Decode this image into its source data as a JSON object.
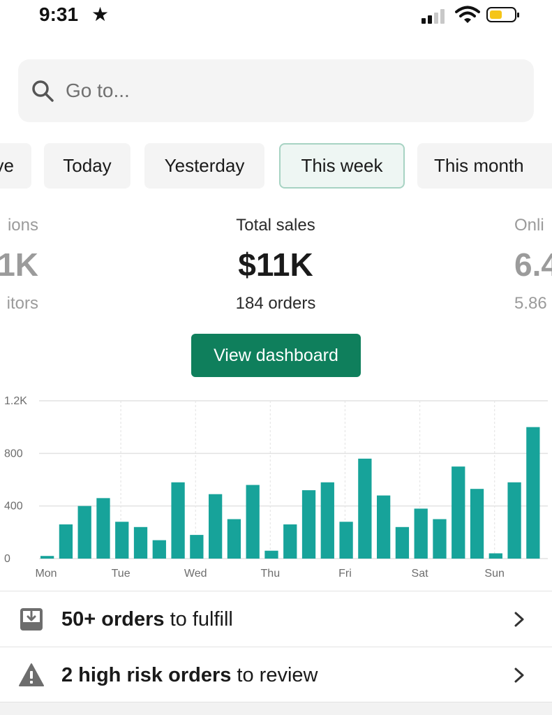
{
  "status_bar": {
    "time": "9:31",
    "location_icon": "star-icon",
    "signal_icon": "cellular-signal-icon",
    "wifi_icon": "wifi-icon",
    "battery_icon": "battery-icon",
    "battery_color": "#f5c518"
  },
  "search": {
    "placeholder": "Go to...",
    "icon": "search-icon"
  },
  "date_chips": [
    {
      "label": "ve",
      "active": false
    },
    {
      "label": "Today",
      "active": false
    },
    {
      "label": "Yesterday",
      "active": false
    },
    {
      "label": "This week",
      "active": true
    },
    {
      "label": "This month",
      "active": false
    }
  ],
  "metrics": {
    "left": {
      "label": "ions",
      "value": "1K",
      "sub": "itors"
    },
    "center": {
      "label": "Total sales",
      "value": "$11K",
      "sub": "184 orders"
    },
    "right": {
      "label": "Onli",
      "value": "6.4",
      "sub": "5.86"
    }
  },
  "view_dashboard_label": "View dashboard",
  "colors": {
    "accent": "#0f7f5c",
    "bar": "#17a39a",
    "active_chip_border": "#a7d3c3"
  },
  "chart_data": {
    "type": "bar",
    "x_tick_labels": [
      "Mon",
      "Tue",
      "Wed",
      "Thu",
      "Fri",
      "Sat",
      "Sun"
    ],
    "y_tick_labels": [
      "0",
      "400",
      "800",
      "1.2K"
    ],
    "ylim": [
      0,
      1200
    ],
    "grid": true,
    "values": [
      20,
      260,
      400,
      460,
      280,
      240,
      140,
      580,
      180,
      490,
      300,
      560,
      60,
      260,
      520,
      580,
      280,
      760,
      480,
      240,
      380,
      300,
      700,
      530,
      40,
      580,
      1000
    ]
  },
  "tasks": [
    {
      "icon": "fulfill-inbox-icon",
      "bold": "50+ orders",
      "rest": " to fulfill"
    },
    {
      "icon": "warning-triangle-icon",
      "bold": "2 high risk orders",
      "rest": " to review"
    }
  ]
}
